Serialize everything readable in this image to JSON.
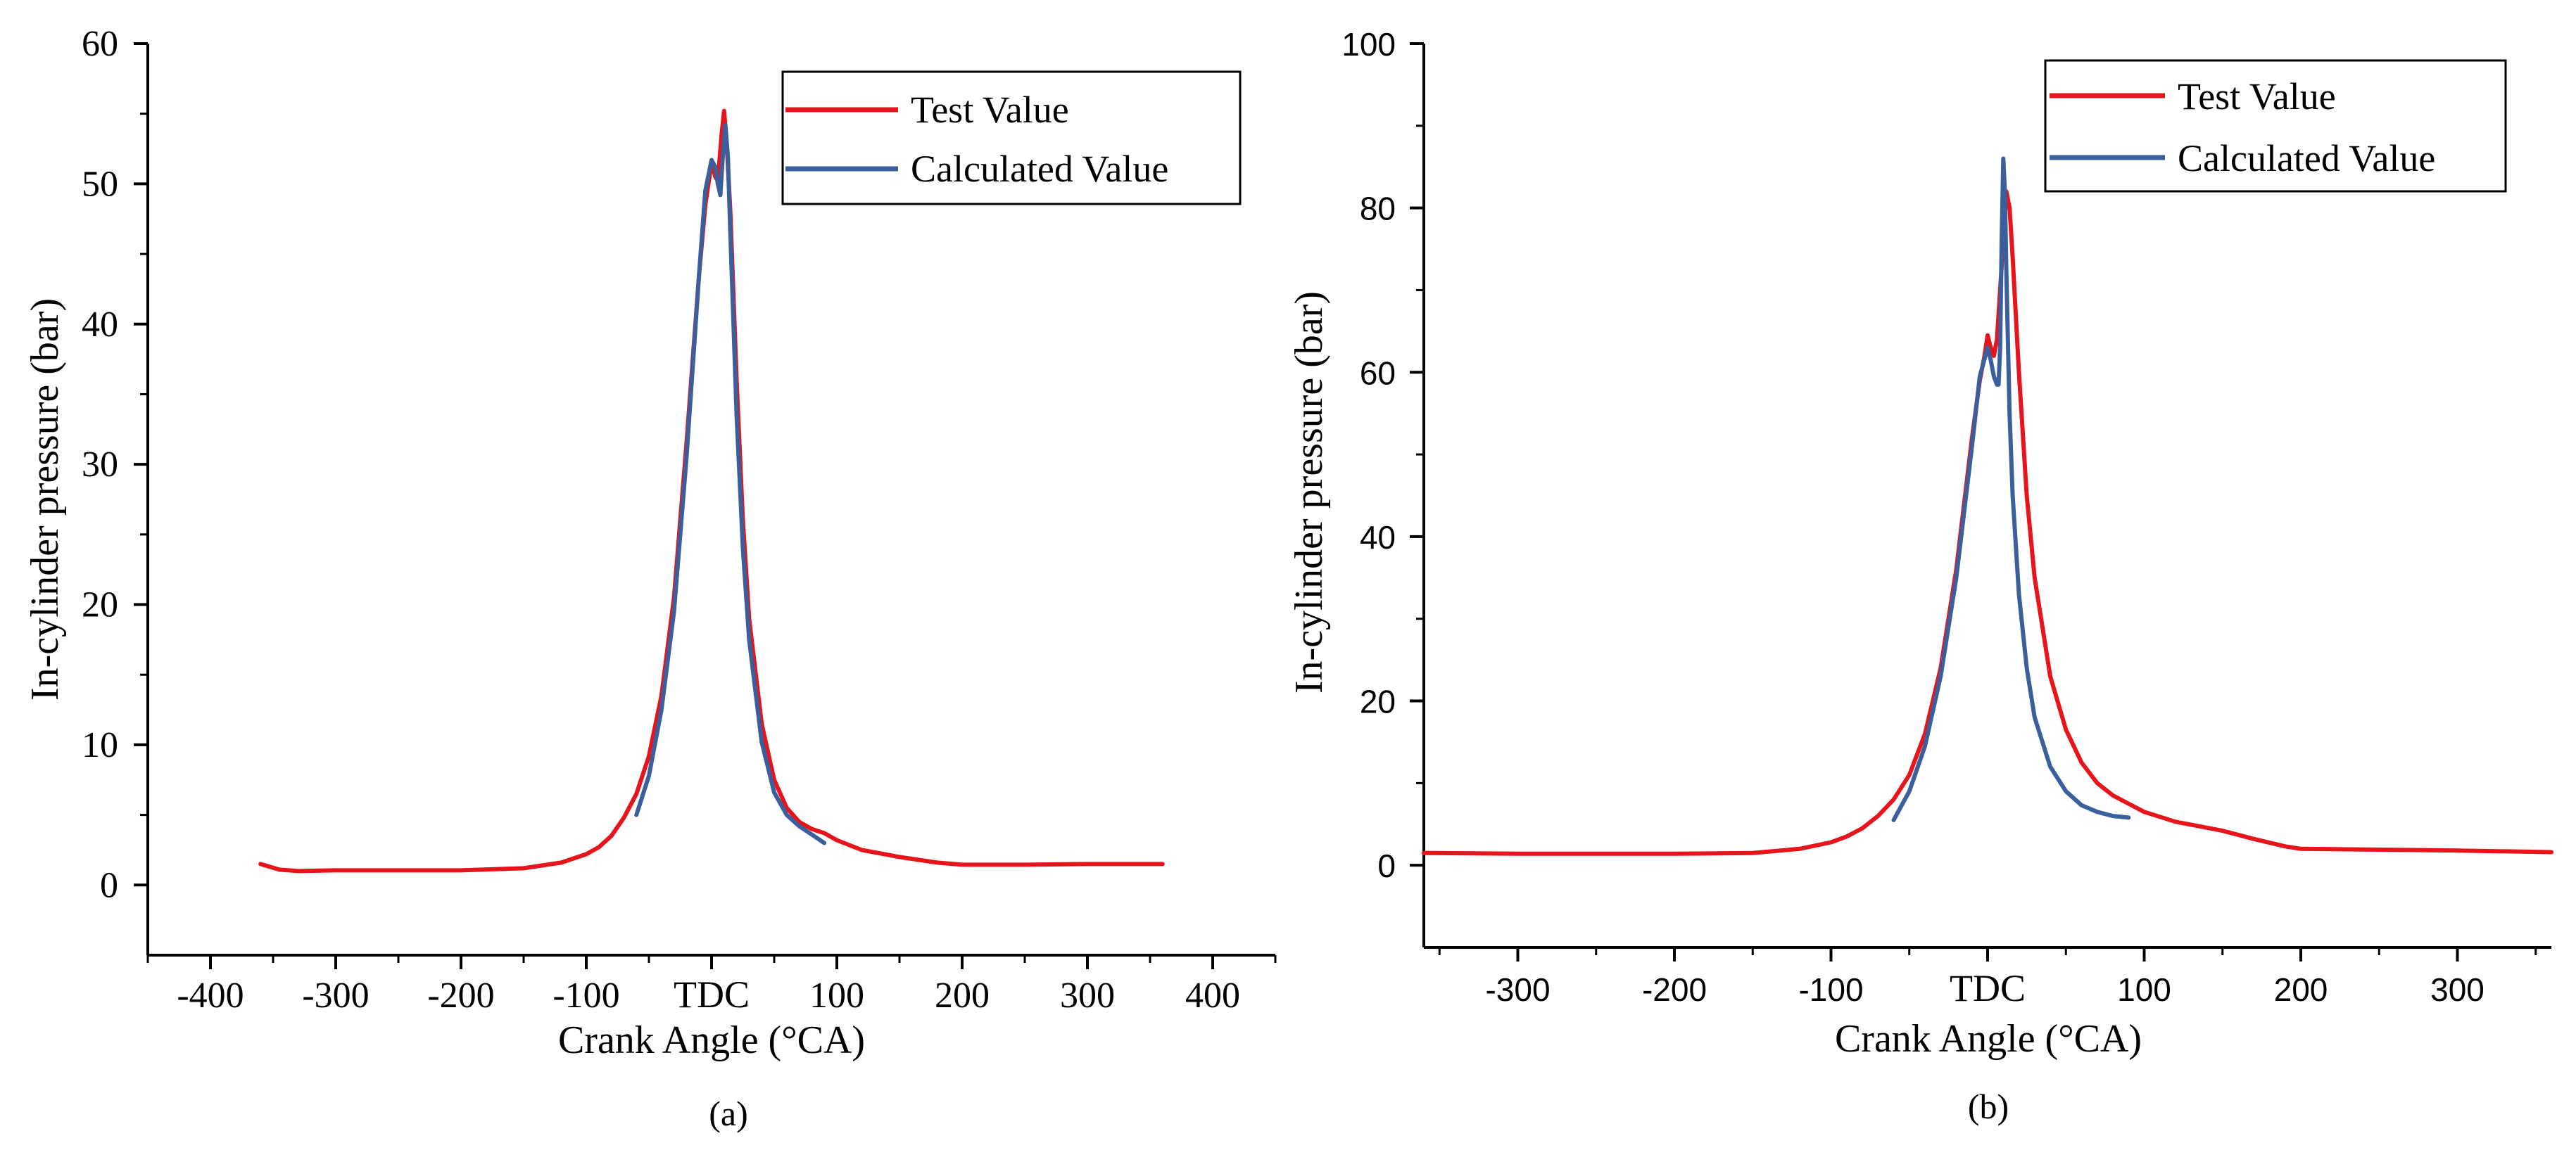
{
  "colors": {
    "test": "#e8141c",
    "calculated": "#3a5f9c",
    "axis": "#000000"
  },
  "chart_data": [
    {
      "type": "line",
      "caption": "(a)",
      "xlabel": "Crank Angle (°CA)",
      "ylabel": "In-cylinder pressure (bar)",
      "xlim": [
        -450,
        450
      ],
      "ylim": [
        -5,
        60
      ],
      "xticks": [
        {
          "v": -400,
          "label": "-400"
        },
        {
          "v": -300,
          "label": "-300"
        },
        {
          "v": -200,
          "label": "-200"
        },
        {
          "v": -100,
          "label": "-100"
        },
        {
          "v": 0,
          "label": "TDC"
        },
        {
          "v": 100,
          "label": "100"
        },
        {
          "v": 200,
          "label": "200"
        },
        {
          "v": 300,
          "label": "300"
        },
        {
          "v": 400,
          "label": "400"
        }
      ],
      "xminor": [
        -450,
        -350,
        -250,
        -150,
        -50,
        50,
        150,
        250,
        350,
        450
      ],
      "yticks": [
        {
          "v": 0,
          "label": "0"
        },
        {
          "v": 10,
          "label": "10"
        },
        {
          "v": 20,
          "label": "20"
        },
        {
          "v": 30,
          "label": "30"
        },
        {
          "v": 40,
          "label": "40"
        },
        {
          "v": 50,
          "label": "50"
        },
        {
          "v": 60,
          "label": "60"
        }
      ],
      "yminor": [
        5,
        15,
        25,
        35,
        45,
        55
      ],
      "legend": [
        "Test Value",
        "Calculated Value"
      ],
      "series": [
        {
          "name": "Test Value",
          "x": [
            -360,
            -345,
            -330,
            -300,
            -250,
            -200,
            -150,
            -120,
            -100,
            -90,
            -80,
            -70,
            -60,
            -50,
            -40,
            -30,
            -20,
            -10,
            -5,
            0,
            3,
            5,
            8,
            10,
            12,
            15,
            20,
            25,
            30,
            40,
            50,
            60,
            70,
            80,
            90,
            100,
            120,
            150,
            180,
            200,
            250,
            300,
            360
          ],
          "y": [
            1.5,
            1.1,
            1.0,
            1.05,
            1.05,
            1.05,
            1.2,
            1.6,
            2.2,
            2.7,
            3.5,
            4.8,
            6.5,
            9.2,
            13.5,
            20.5,
            31.5,
            43.5,
            48.5,
            51.5,
            50.5,
            50.2,
            53.5,
            55.2,
            53.0,
            48.0,
            36.0,
            26.0,
            19.0,
            11.5,
            7.5,
            5.5,
            4.5,
            4.0,
            3.7,
            3.2,
            2.5,
            2.0,
            1.6,
            1.45,
            1.45,
            1.5,
            1.5
          ]
        },
        {
          "name": "Calculated Value",
          "x": [
            -60,
            -50,
            -40,
            -30,
            -20,
            -10,
            -5,
            0,
            3,
            5,
            7,
            9,
            11,
            13,
            15,
            20,
            25,
            30,
            40,
            50,
            60,
            70,
            80,
            90
          ],
          "y": [
            5.0,
            7.8,
            12.5,
            19.5,
            30.5,
            43.5,
            49.5,
            51.7,
            51.2,
            50.0,
            49.2,
            52.0,
            54.2,
            52.0,
            46.5,
            33.5,
            24.0,
            17.5,
            10.2,
            6.6,
            5.0,
            4.2,
            3.6,
            3.0
          ]
        }
      ]
    },
    {
      "type": "line",
      "caption": "(b)",
      "xlabel": "Crank Angle (°CA)",
      "ylabel": "In-cylinder pressure (bar)",
      "xlim": [
        -360,
        360
      ],
      "ylim": [
        -10,
        100
      ],
      "xticks": [
        {
          "v": -300,
          "label": "-300"
        },
        {
          "v": -200,
          "label": "-200"
        },
        {
          "v": -100,
          "label": "-100"
        },
        {
          "v": 0,
          "label": "TDC"
        },
        {
          "v": 100,
          "label": "100"
        },
        {
          "v": 200,
          "label": "200"
        },
        {
          "v": 300,
          "label": "300"
        }
      ],
      "xminor": [
        -350,
        -250,
        -150,
        -50,
        50,
        150,
        250,
        350
      ],
      "yticks": [
        {
          "v": 0,
          "label": "0"
        },
        {
          "v": 20,
          "label": "20"
        },
        {
          "v": 40,
          "label": "40"
        },
        {
          "v": 60,
          "label": "60"
        },
        {
          "v": 80,
          "label": "80"
        },
        {
          "v": 100,
          "label": "100"
        }
      ],
      "yminor": [
        10,
        30,
        50,
        70,
        90
      ],
      "legend": [
        "Test Value",
        "Calculated Value"
      ],
      "series": [
        {
          "name": "Test Value",
          "x": [
            -360,
            -300,
            -250,
            -200,
            -150,
            -120,
            -100,
            -90,
            -80,
            -70,
            -60,
            -50,
            -40,
            -30,
            -20,
            -10,
            -5,
            -2,
            0,
            2,
            4,
            6,
            8,
            10,
            12,
            14,
            16,
            20,
            25,
            30,
            40,
            50,
            60,
            70,
            80,
            90,
            100,
            120,
            150,
            170,
            190,
            200,
            250,
            300,
            360
          ],
          "y": [
            1.5,
            1.4,
            1.4,
            1.4,
            1.5,
            2.0,
            2.8,
            3.5,
            4.5,
            6.0,
            8.0,
            11.0,
            16.0,
            24.0,
            36.0,
            52.0,
            59.0,
            62.0,
            64.5,
            63.0,
            62.0,
            64.0,
            70.0,
            76.0,
            82.0,
            80.0,
            74.0,
            60.0,
            45.0,
            35.0,
            23.0,
            16.5,
            12.5,
            10.0,
            8.5,
            7.5,
            6.5,
            5.3,
            4.2,
            3.2,
            2.3,
            2.0,
            1.9,
            1.8,
            1.6
          ]
        },
        {
          "name": "Calculated Value",
          "x": [
            -60,
            -50,
            -40,
            -30,
            -20,
            -10,
            -5,
            0,
            2,
            4,
            6,
            7,
            8,
            9,
            10,
            11,
            12,
            14,
            16,
            20,
            25,
            30,
            40,
            50,
            60,
            70,
            80,
            90
          ],
          "y": [
            5.5,
            9.0,
            14.5,
            23.0,
            35.0,
            51.0,
            59.5,
            63.0,
            61.5,
            59.5,
            58.5,
            58.5,
            63.0,
            76.0,
            86.0,
            82.0,
            72.0,
            55.0,
            45.0,
            33.0,
            24.0,
            18.0,
            12.0,
            9.0,
            7.3,
            6.5,
            6.0,
            5.8
          ]
        }
      ]
    }
  ]
}
